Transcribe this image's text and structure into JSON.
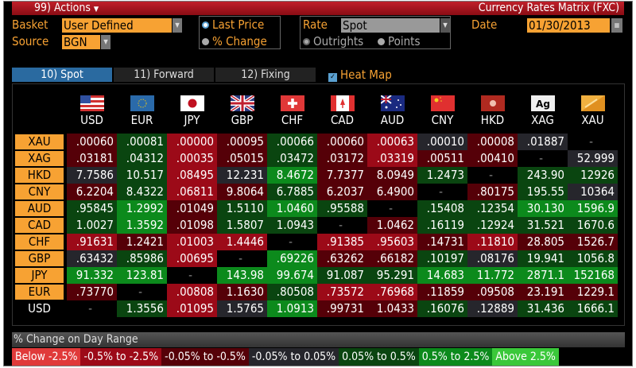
{
  "titlebar": {
    "actions": "99) Actions",
    "actions_icon": "caret-down-icon",
    "title": "Currency Rates Matrix (FXC)"
  },
  "controls": {
    "basket_label": "Basket",
    "basket_value": "User Defined",
    "source_label": "Source",
    "source_value": "BGN",
    "mode_options": [
      "Last Price",
      "% Change"
    ],
    "mode_selected": "Last Price",
    "rate_label": "Rate",
    "rate_value": "Spot",
    "rate_options": [
      "Outrights",
      "Points"
    ],
    "rate_selected": "Outrights",
    "date_label": "Date",
    "date_value": "01/30/2013",
    "date_icon": "calendar-icon"
  },
  "tabs": [
    {
      "label": "10) Spot",
      "active": true
    },
    {
      "label": "11) Forward",
      "active": false
    },
    {
      "label": "12) Fixing",
      "active": false
    }
  ],
  "heatmap": {
    "label": "Heat Map",
    "checked": true
  },
  "columns": [
    "USD",
    "EUR",
    "JPY",
    "GBP",
    "CHF",
    "CAD",
    "AUD",
    "CNY",
    "HKD",
    "XAG",
    "XAU"
  ],
  "rows": [
    {
      "label": "XAU",
      "values": [
        ".00060",
        ".00081",
        ".00000",
        ".00095",
        ".00066",
        ".00060",
        ".00063",
        ".00010",
        ".00008",
        ".01887",
        "-"
      ],
      "levels": [
        -1,
        1,
        -2,
        -1,
        1,
        -1,
        -2,
        0,
        -1,
        0,
        null
      ]
    },
    {
      "label": "XAG",
      "values": [
        ".03181",
        ".04312",
        ".00035",
        ".05015",
        ".03472",
        ".03172",
        ".03319",
        ".00511",
        ".00410",
        "-",
        "52.999"
      ],
      "levels": [
        -1,
        1,
        -2,
        -1,
        1,
        -1,
        -2,
        -1,
        -1,
        null,
        0
      ]
    },
    {
      "label": "HKD",
      "values": [
        "7.7586",
        "10.517",
        ".08495",
        "12.231",
        "8.4672",
        "7.7377",
        "8.0949",
        "1.2473",
        "-",
        "243.90",
        "12926"
      ],
      "levels": [
        0,
        1,
        -2,
        0,
        2,
        -1,
        -1,
        1,
        null,
        1,
        1
      ]
    },
    {
      "label": "CNY",
      "values": [
        "6.2204",
        "8.4322",
        ".06811",
        "9.8064",
        "6.7885",
        "6.2037",
        "6.4900",
        "-",
        ".80175",
        "195.55",
        "10364"
      ],
      "levels": [
        -1,
        1,
        -2,
        -1,
        1,
        -1,
        -1,
        null,
        -1,
        1,
        0
      ]
    },
    {
      "label": "AUD",
      "values": [
        ".95845",
        "1.2992",
        ".01049",
        "1.5110",
        "1.0460",
        ".95588",
        "-",
        ".15408",
        ".12354",
        "30.130",
        "1596.9"
      ],
      "levels": [
        1,
        2,
        -1,
        1,
        2,
        1,
        null,
        1,
        1,
        2,
        2
      ]
    },
    {
      "label": "CAD",
      "values": [
        "1.0027",
        "1.3592",
        ".01098",
        "1.5807",
        "1.0943",
        "-",
        "1.0462",
        ".16119",
        ".12924",
        "31.521",
        "1670.6"
      ],
      "levels": [
        1,
        2,
        -1,
        1,
        1,
        null,
        -1,
        1,
        1,
        1,
        1
      ]
    },
    {
      "label": "CHF",
      "values": [
        ".91631",
        "1.2421",
        ".01003",
        "1.4446",
        "-",
        ".91385",
        ".95603",
        ".14731",
        ".11810",
        "28.805",
        "1526.7"
      ],
      "levels": [
        -2,
        -1,
        -2,
        -2,
        null,
        -2,
        -2,
        -1,
        -2,
        -1,
        -1
      ]
    },
    {
      "label": "GBP",
      "values": [
        ".63432",
        ".85986",
        ".00695",
        "-",
        ".69226",
        ".63262",
        ".66182",
        ".10197",
        ".08176",
        "19.941",
        "1056.8"
      ],
      "levels": [
        0,
        1,
        -2,
        null,
        2,
        -1,
        -1,
        1,
        0,
        1,
        1
      ]
    },
    {
      "label": "JPY",
      "values": [
        "91.332",
        "123.81",
        "-",
        "143.98",
        "99.674",
        "91.087",
        "95.291",
        "14.683",
        "11.772",
        "2871.1",
        "152168"
      ],
      "levels": [
        2,
        2,
        null,
        2,
        2,
        1,
        1,
        2,
        2,
        2,
        2
      ]
    },
    {
      "label": "EUR",
      "values": [
        ".73770",
        "-",
        ".00808",
        "1.1630",
        ".80508",
        ".73572",
        ".76968",
        ".11859",
        ".09508",
        "23.191",
        "1229.1"
      ],
      "levels": [
        -1,
        null,
        -2,
        -1,
        1,
        -2,
        -2,
        -1,
        -1,
        -1,
        -1
      ]
    },
    {
      "label": "USD",
      "values": [
        "-",
        "1.3556",
        ".01095",
        "1.5765",
        "1.0913",
        ".99731",
        "1.0433",
        ".16076",
        ".12889",
        "31.436",
        "1666.1"
      ],
      "levels": [
        null,
        1,
        -2,
        0,
        2,
        -1,
        -1,
        1,
        0,
        1,
        1
      ]
    }
  ],
  "legend": {
    "title": "% Change on Day Range",
    "items": [
      {
        "label": "Below -2.5%",
        "level": -3,
        "color": "#e03a3a"
      },
      {
        "label": "-0.5% to -2.5%",
        "level": -2,
        "color": "#9c0a18"
      },
      {
        "label": "-0.05% to -0.5%",
        "level": -1,
        "color": "#550008"
      },
      {
        "label": "-0.05% to 0.05%",
        "level": 0,
        "color": "#26262c"
      },
      {
        "label": "0.05% to 0.5%",
        "level": 1,
        "color": "#0a4510"
      },
      {
        "label": "0.5% to 2.5%",
        "level": 2,
        "color": "#0c8a1c"
      },
      {
        "label": "Above 2.5%",
        "level": 3,
        "color": "#3ac83a"
      }
    ]
  },
  "colors": {
    "accent": "#f7a233",
    "title_red": "#b01822",
    "tab_active": "#2a6aa0"
  }
}
